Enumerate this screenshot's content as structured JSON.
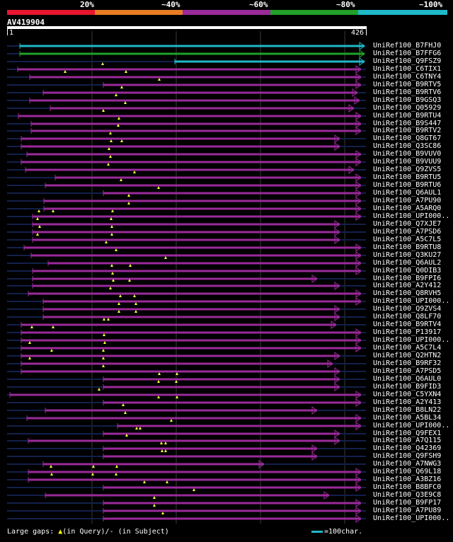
{
  "header": {
    "percent_labels": [
      "20%",
      "~40%",
      "~60%",
      "~80%",
      "~100%"
    ],
    "bar_colors": [
      "#e8162f",
      "#e87d24",
      "#9a2a9a",
      "#22a02a",
      "#20b9c8"
    ]
  },
  "query": {
    "name": "AV419904",
    "start": "1",
    "end": "426"
  },
  "hits": [
    {
      "label": "UniRef100_B7FHJ0",
      "color": "#20b9c8"
    },
    {
      "label": "UniRef100_B7FFG6",
      "color": "#22a02a"
    },
    {
      "label": "UniRef100_Q9FSZ9",
      "color": "#20b9c8"
    },
    {
      "label": "UniRef100_C6TIX1",
      "color": "#9a2a9a"
    },
    {
      "label": "UniRef100_C6TNY4",
      "color": "#9a2a9a"
    },
    {
      "label": "UniRef100_B9RTV5",
      "color": "#9a2a9a"
    },
    {
      "label": "UniRef100_B9RTV6",
      "color": "#9a2a9a"
    },
    {
      "label": "UniRef100_B9GSQ3",
      "color": "#9a2a9a"
    },
    {
      "label": "UniRef100_Q05929",
      "color": "#9a2a9a"
    },
    {
      "label": "UniRef100_B9RTU4",
      "color": "#9a2a9a"
    },
    {
      "label": "UniRef100_B9S447",
      "color": "#9a2a9a"
    },
    {
      "label": "UniRef100_B9RTV2",
      "color": "#9a2a9a"
    },
    {
      "label": "UniRef100_Q8GT67",
      "color": "#9a2a9a"
    },
    {
      "label": "UniRef100_Q3SC86",
      "color": "#9a2a9a"
    },
    {
      "label": "UniRef100_B9VUV0",
      "color": "#9a2a9a"
    },
    {
      "label": "UniRef100_B9VUU9",
      "color": "#9a2a9a"
    },
    {
      "label": "UniRef100_Q9ZVS5",
      "color": "#9a2a9a"
    },
    {
      "label": "UniRef100_B9RTU5",
      "color": "#9a2a9a"
    },
    {
      "label": "UniRef100_B9RTU6",
      "color": "#9a2a9a"
    },
    {
      "label": "UniRef100_Q6AUL1",
      "color": "#9a2a9a"
    },
    {
      "label": "UniRef100_A7PU90",
      "color": "#9a2a9a"
    },
    {
      "label": "UniRef100_A5ARQ0",
      "color": "#9a2a9a"
    },
    {
      "label": "UniRef100_UPI000..",
      "color": "#9a2a9a"
    },
    {
      "label": "UniRef100_Q7XJE7",
      "color": "#9a2a9a"
    },
    {
      "label": "UniRef100_A7PSD6",
      "color": "#9a2a9a"
    },
    {
      "label": "UniRef100_A5C7L5",
      "color": "#9a2a9a"
    },
    {
      "label": "UniRef100_B9RTU8",
      "color": "#9a2a9a"
    },
    {
      "label": "UniRef100_Q3KU27",
      "color": "#9a2a9a"
    },
    {
      "label": "UniRef100_Q6AUL2",
      "color": "#9a2a9a"
    },
    {
      "label": "UniRef100_Q0DIB3",
      "color": "#9a2a9a"
    },
    {
      "label": "UniRef100_B9FPI6",
      "color": "#9a2a9a"
    },
    {
      "label": "UniRef100_A2Y412",
      "color": "#9a2a9a"
    },
    {
      "label": "UniRef100_Q8RVH5",
      "color": "#9a2a9a"
    },
    {
      "label": "UniRef100_UPI000..",
      "color": "#9a2a9a"
    },
    {
      "label": "UniRef100_Q9ZVS4",
      "color": "#9a2a9a"
    },
    {
      "label": "UniRef100_Q8LF70",
      "color": "#9a2a9a"
    },
    {
      "label": "UniRef100_B9RTV4",
      "color": "#9a2a9a"
    },
    {
      "label": "UniRef100_P13917",
      "color": "#9a2a9a"
    },
    {
      "label": "UniRef100_UPI000..",
      "color": "#9a2a9a"
    },
    {
      "label": "UniRef100_A5C7L4",
      "color": "#9a2a9a"
    },
    {
      "label": "UniRef100_Q2HTN2",
      "color": "#9a2a9a"
    },
    {
      "label": "UniRef100_B9RF32",
      "color": "#9a2a9a"
    },
    {
      "label": "UniRef100_A7PSD5",
      "color": "#9a2a9a"
    },
    {
      "label": "UniRef100_Q6AUL0",
      "color": "#9a2a9a"
    },
    {
      "label": "UniRef100_B9FID3",
      "color": "#9a2a9a"
    },
    {
      "label": "UniRef100_C5YXN4",
      "color": "#9a2a9a"
    },
    {
      "label": "UniRef100_A2Y413",
      "color": "#9a2a9a"
    },
    {
      "label": "UniRef100_B8LN22",
      "color": "#9a2a9a"
    },
    {
      "label": "UniRef100_A5BL34",
      "color": "#9a2a9a"
    },
    {
      "label": "UniRef100_UPI000..",
      "color": "#9a2a9a"
    },
    {
      "label": "UniRef100_Q9FEX1",
      "color": "#9a2a9a"
    },
    {
      "label": "UniRef100_A7Q115",
      "color": "#9a2a9a"
    },
    {
      "label": "UniRef100_Q42369",
      "color": "#9a2a9a"
    },
    {
      "label": "UniRef100_Q9FSH9",
      "color": "#9a2a9a"
    },
    {
      "label": "UniRef100_A7NWG3",
      "color": "#9a2a9a"
    },
    {
      "label": "UniRef100_Q69L18",
      "color": "#9a2a9a"
    },
    {
      "label": "UniRef100_A3BZ16",
      "color": "#9a2a9a"
    },
    {
      "label": "UniRef100_B8BFC0",
      "color": "#9a2a9a"
    },
    {
      "label": "UniRef100_Q3E9C8",
      "color": "#9a2a9a"
    },
    {
      "label": "UniRef100_B9FP17",
      "color": "#9a2a9a"
    },
    {
      "label": "UniRef100_A7PU89",
      "color": "#9a2a9a"
    },
    {
      "label": "UniRef100_UPI000..",
      "color": "#9a2a9a"
    }
  ],
  "legend": {
    "prefix": "Large gaps: ",
    "query_marker": "▲",
    "query_text": "(in Query)/",
    "subject_marker": "-",
    "subject_text": " (in Subject)"
  },
  "scale": {
    "text": "=100char."
  }
}
